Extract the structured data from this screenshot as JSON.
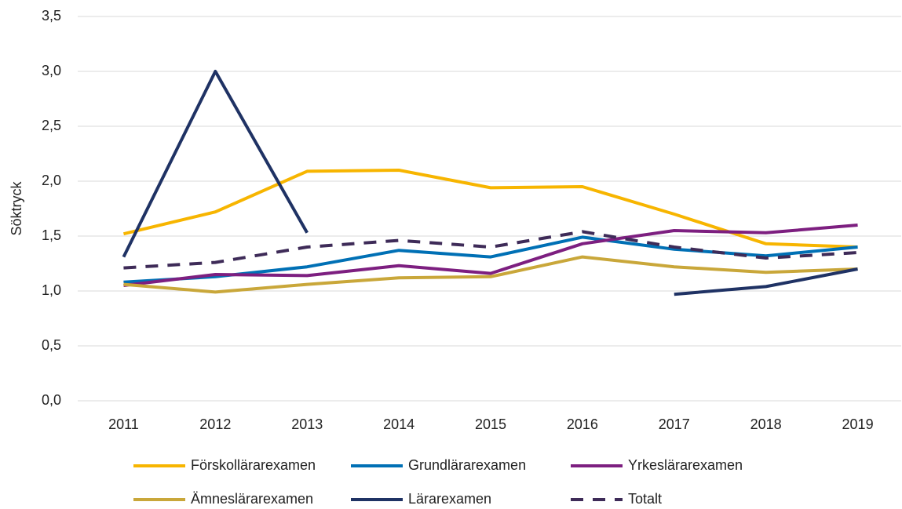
{
  "chart_data": {
    "type": "line",
    "y_label": "Söktryck",
    "categories": [
      "2011",
      "2012",
      "2013",
      "2014",
      "2015",
      "2016",
      "2017",
      "2018",
      "2019"
    ],
    "series": [
      {
        "name": "Förskollärarexamen",
        "color": "#f7b500",
        "values": [
          1.52,
          1.72,
          2.09,
          2.1,
          1.94,
          1.95,
          1.7,
          1.43,
          1.4
        ]
      },
      {
        "name": "Grundlärarexamen",
        "color": "#0070b5",
        "values": [
          1.08,
          1.13,
          1.22,
          1.37,
          1.31,
          1.49,
          1.38,
          1.32,
          1.4
        ]
      },
      {
        "name": "Yrkeslärarexamen",
        "color": "#7d1f80",
        "values": [
          1.05,
          1.15,
          1.14,
          1.23,
          1.16,
          1.43,
          1.55,
          1.53,
          1.6
        ]
      },
      {
        "name": "Ämneslärarexamen",
        "color": "#c9a73a",
        "values": [
          1.06,
          0.99,
          1.06,
          1.12,
          1.13,
          1.31,
          1.22,
          1.17,
          1.2
        ]
      },
      {
        "name": "Lärarexamen",
        "color": "#1f3264",
        "values": [
          1.31,
          3.0,
          1.53,
          null,
          null,
          null,
          0.97,
          1.04,
          1.2
        ]
      },
      {
        "name": "Totalt",
        "color": "#3e2b58",
        "dashed": true,
        "values": [
          1.21,
          1.26,
          1.4,
          1.46,
          1.4,
          1.54,
          1.4,
          1.3,
          1.35
        ]
      }
    ],
    "ylim": [
      0,
      3.5
    ],
    "yticks": [
      {
        "value": 0,
        "label": "0,0"
      },
      {
        "value": 0.5,
        "label": "0,5"
      },
      {
        "value": 1,
        "label": "1,0"
      },
      {
        "value": 1.5,
        "label": "1,5"
      },
      {
        "value": 2,
        "label": "2,0"
      },
      {
        "value": 2.5,
        "label": "2,5"
      },
      {
        "value": 3,
        "label": "3,0"
      },
      {
        "value": 3.5,
        "label": "3,5"
      }
    ],
    "grid": true,
    "legend": "bottom"
  }
}
